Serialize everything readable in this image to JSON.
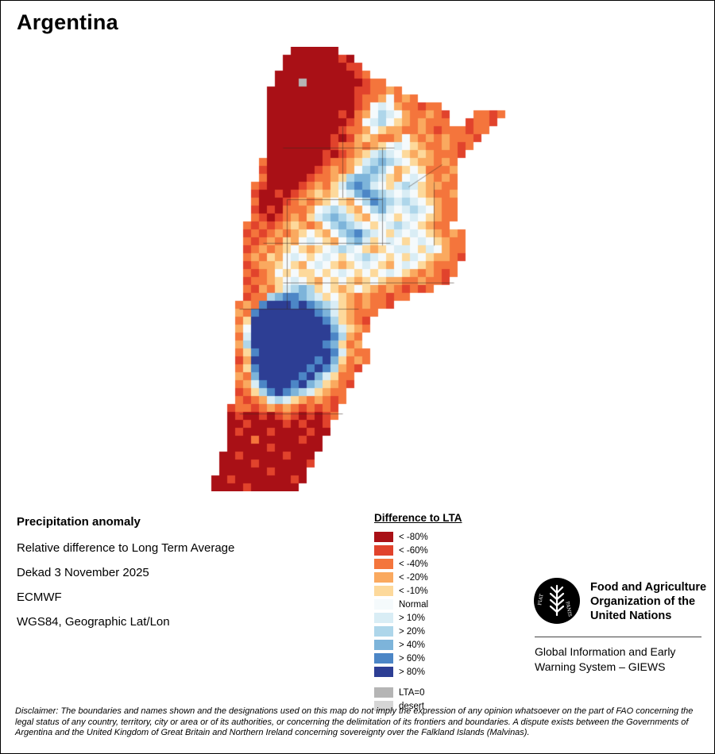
{
  "title": "Argentina",
  "info": {
    "heading": "Precipitation anomaly",
    "description": "Relative difference to Long Term Average",
    "dekad": "Dekad 3 November 2025",
    "source": "ECMWF",
    "projection": "WGS84, Geographic Lat/Lon"
  },
  "legend": {
    "title": "Difference to LTA",
    "items": [
      {
        "label": "< -80%",
        "color": "#a91016"
      },
      {
        "label": "< -60%",
        "color": "#e1432c"
      },
      {
        "label": "< -40%",
        "color": "#f4753c"
      },
      {
        "label": "< -20%",
        "color": "#faa95f"
      },
      {
        "label": "< -10%",
        "color": "#fdd99b"
      },
      {
        "label": "Normal",
        "color": "#f5fafc"
      },
      {
        "label": "> 10%",
        "color": "#d9edf5"
      },
      {
        "label": "> 20%",
        "color": "#aed6ea"
      },
      {
        "label": "> 40%",
        "color": "#7db4da"
      },
      {
        "label": "> 60%",
        "color": "#4c86c6"
      },
      {
        "label": "> 80%",
        "color": "#2d3e94"
      }
    ],
    "extra_items": [
      {
        "label": "LTA=0",
        "color": "#b5b5b5"
      },
      {
        "label": "desert",
        "color": "#d6d6d6"
      }
    ]
  },
  "footer": {
    "org_line1": "Food and Agriculture",
    "org_line2": "Organization of the",
    "org_line3": "United Nations",
    "giews_line1": "Global Information and Early",
    "giews_line2": "Warning System – GIEWS",
    "logo_motto_left": "FIAT",
    "logo_motto_right": "PANIS"
  },
  "disclaimer": "Disclaimer: The boundaries and names shown and the designations used on this map do not imply the expression of any opinion whatsoever on the part of FAO concerning the legal status of any country, territory, city or area or of its authorities, or concerning the delimitation of its frontiers and boundaries. A dispute exists between the Governments of Argentina and the United Kingdom of Great Britain and Northern Ireland concerning sovereignty over the Falkland Islands (Malvinas).",
  "map": {
    "cell_size": 10,
    "palette": {
      "A": "#a91016",
      "B": "#e1432c",
      "C": "#f4753c",
      "D": "#faa95f",
      "E": "#fdd99b",
      "N": "#f5fafc",
      "F": "#d9edf5",
      "G": "#aed6ea",
      "H": "#7db4da",
      "I": "#4c86c6",
      "J": "#2d3e94",
      "K": "#b5b5b5",
      "L": "#d6d6d6"
    },
    "borders": [
      [
        175,
        100,
        175,
        190
      ],
      [
        100,
        127,
        240,
        127
      ],
      [
        105,
        192,
        225,
        192
      ],
      [
        225,
        127,
        225,
        250
      ],
      [
        75,
        247,
        235,
        247
      ],
      [
        105,
        192,
        105,
        330
      ],
      [
        100,
        297,
        315,
        297
      ],
      [
        45,
        330,
        195,
        330
      ],
      [
        290,
        170,
        290,
        250
      ],
      [
        258,
        176,
        300,
        148
      ],
      [
        45,
        462,
        175,
        462
      ]
    ],
    "grid": [
      "...........AAAAAA.......................",
      "..........AAAAAAABA.....................",
      "..........AAAAAAAABB....................",
      ".........AAAAAAAAAABC...................",
      ".........AAAKAAAAAAABCC.................",
      "........AAAAAAAAAAABBCCDC...............",
      "........AAAAAAAAAAABCCDNCDC.............",
      "........AAAAAAAAAAABCNFNDCCBCC..........",
      "........AAAAAAAAABACDNGFNDCCDCB...CCBC..",
      "........AAAAAAAAAABCNFGNEDCDCCC..BCCB...",
      "........AAAAAAAAABCCDNEDDCCDCBCCCBCC....",
      "........AAAAAAAABABDEDCCDNDCDCDCCCB.....",
      "........AAAAAAAABCCDCDENFNEDCCDCBC......",
      "........AAAAAAABABCDEFGFNEDEDCCCB.......",
      ".......CAAAAAAABCCDEFGHGFNEDDCDC........",
      ".......BAAAAAABCDCDNGHGNDENECCCD........",
      ".......CAAAAABCCDEGHHGFEDNFNDCDC........",
      "......CBAAAABCDCEFHIHFNEFGFEDDCC........",
      "......BAABABCDEDENFHIHGFNFNEDCCD........",
      "......CAAABCDCDENEDNGIHGFGFNEDCC........",
      "......BABACCCDNFGFEDNGHFNFGFNDCC........",
      "......CBABCDCEFGHGFEDNFNENFNEDCC........",
      ".....CBCBCDEDCDNGHGFNENFGFNEDCC.........",
      ".....BCBCDCDENEDNGHIGFNEFNFNEDCDC.......",
      ".....CBCDCEDNFNEDNGHFENFNENFNEDCC.......",
      ".....BCDCDENEDENFGFNEDENFFNEFNDCC.......",
      ".....CDCEDNFNENFNENFGFNENEFNEDDCB.......",
      ".....BCDDENEDNFNEDENFNEDNFNEDCCC........",
      ".....CBCDNENEENENFNENENFNEDCDCBC........",
      ".....BCCDENFNEDNENEDENEDDCCDCCB.........",
      ".....CBDCEFGHGENEDENEDCDCBCBC...........",
      ".....BCCGHIIHGFENEDCDCCBCC..............",
      "....CDCIJJJIJIHGFEDCDCCB................",
      "....DCIJJJJJJJIHFEDCCC..................",
      "....CEJJJJJJJJJIGEDCB...................",
      "....DNJJJJJJJJJJHFEDC...................",
      "....CFJJJJJJJJJJIGDC....................",
      "....DGJJJJJJJJJIHECD....................",
      "....CEIJJJJJJJJJIFDCC...................",
      "....BDJJJJJJJJIJHECDC...................",
      "....CEIJJJJJJIJIGDCB....................",
      "....DCHJJJJJIJHFECC.....................",
      "....CDFIJJJIJHGEDCB.....................",
      "....BCEGIJIHGFEDCC......................",
      "....CBCDFGFEDCDCBC......................",
      "...BCCBCDCDCBCBCB.......................",
      "...ABAABABCBABABC.......................",
      "...AABAAAABABAAB........................",
      "...ABAAABAAAABAA........................",
      "...AAACAAAAABAA.........................",
      "...AAAAABAAAAAA.........................",
      "..AABAAAAABAAA..........................",
      "..AAAABAAAAAAB..........................",
      "..AAAAAABAAAA...........................",
      ".AABAAAAAAABA...........................",
      ".AAAABAAAAAA............................"
    ]
  }
}
